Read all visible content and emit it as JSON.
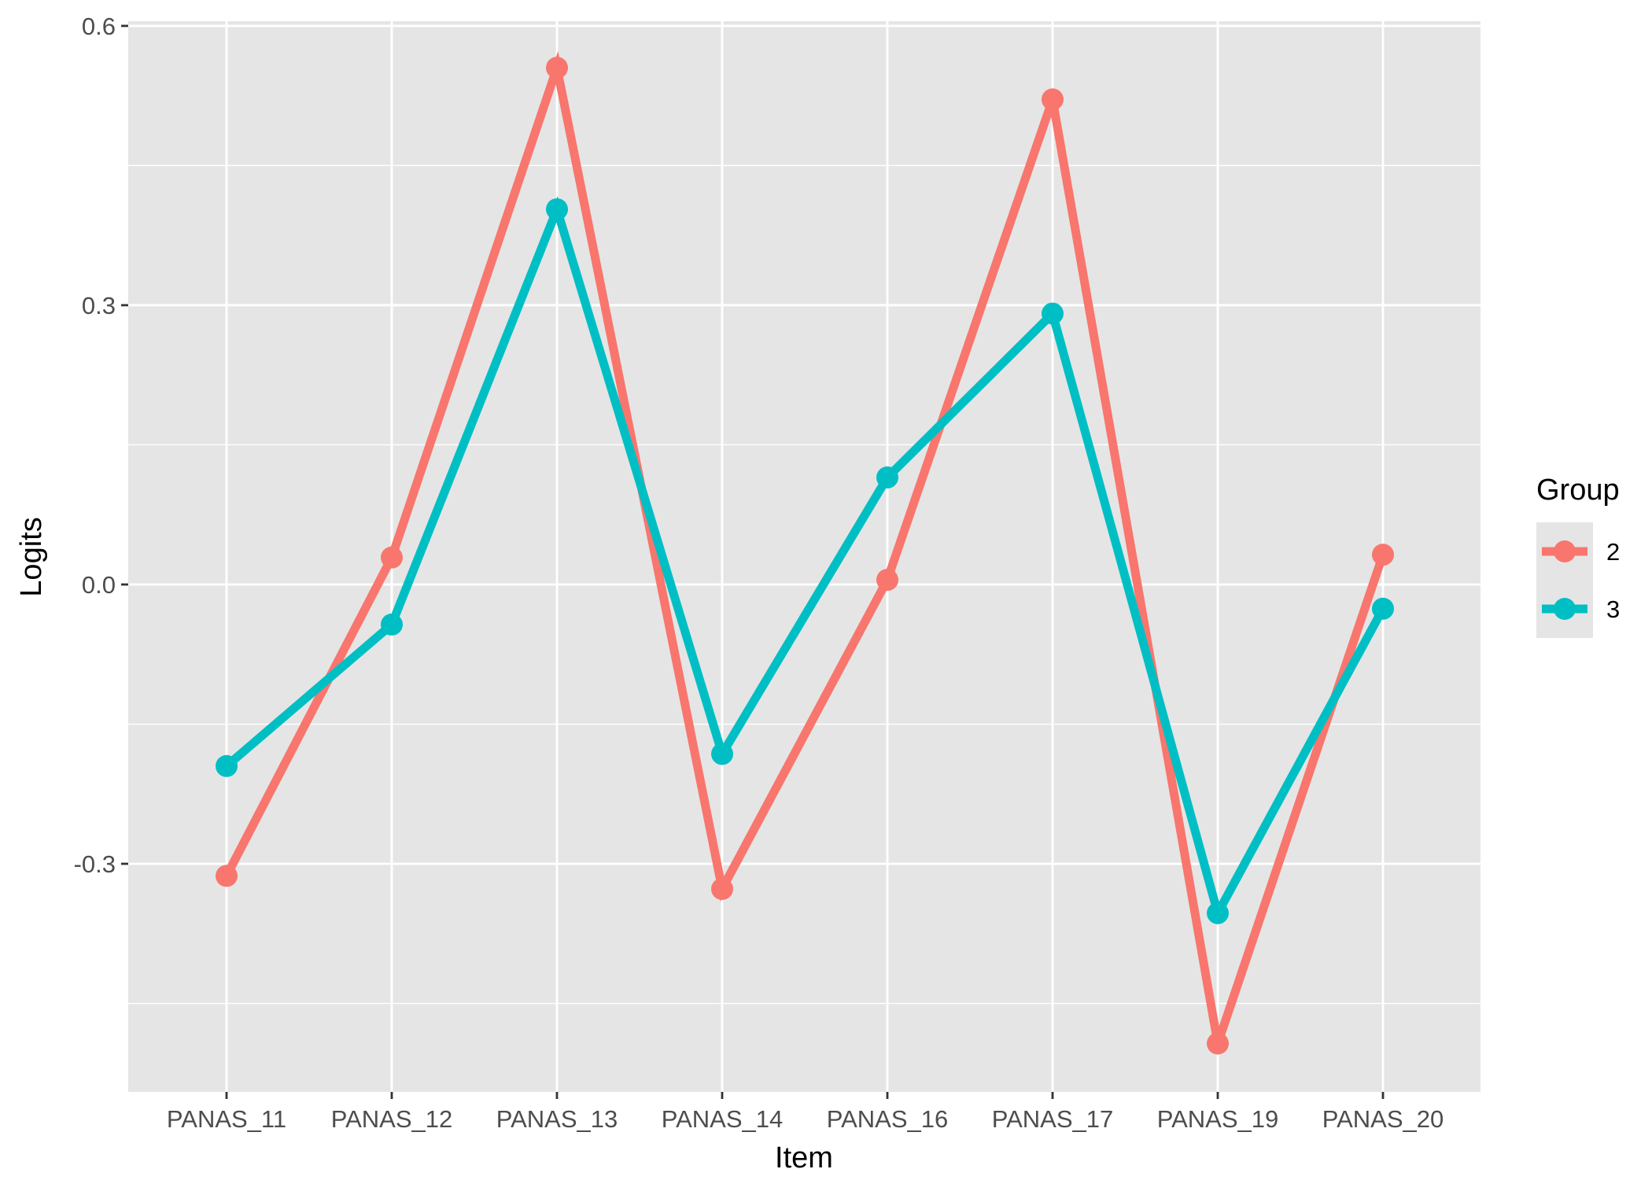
{
  "chart_data": {
    "type": "line",
    "title": "",
    "xlabel": "Item",
    "ylabel": "Logits",
    "categories": [
      "PANAS_11",
      "PANAS_12",
      "PANAS_13",
      "PANAS_14",
      "PANAS_16",
      "PANAS_17",
      "PANAS_19",
      "PANAS_20"
    ],
    "ylim": [
      -0.545,
      0.605
    ],
    "yticks": [
      -0.3,
      0.0,
      0.3,
      0.6
    ],
    "ytick_labels": [
      "-0.3",
      "0.0",
      "0.3",
      "0.6"
    ],
    "minor_yticks": [
      -0.45,
      -0.15,
      0.15,
      0.45
    ],
    "grid": true,
    "legend": {
      "title": "Group",
      "position": "right"
    },
    "series": [
      {
        "name": "2",
        "color": "#F8766D",
        "values": [
          -0.313,
          0.029,
          0.555,
          -0.327,
          0.005,
          0.521,
          -0.493,
          0.032
        ]
      },
      {
        "name": "3",
        "color": "#00BFC4",
        "values": [
          -0.195,
          -0.043,
          0.403,
          -0.182,
          0.115,
          0.291,
          -0.353,
          -0.026
        ]
      }
    ],
    "colors": {
      "panel_background": "#E5E5E5",
      "grid_line": "#FFFFFF",
      "tick_text": "#4D4D4D",
      "axis_tick": "#333333",
      "series_2": "#F8766D",
      "series_3": "#00BFC4"
    }
  }
}
